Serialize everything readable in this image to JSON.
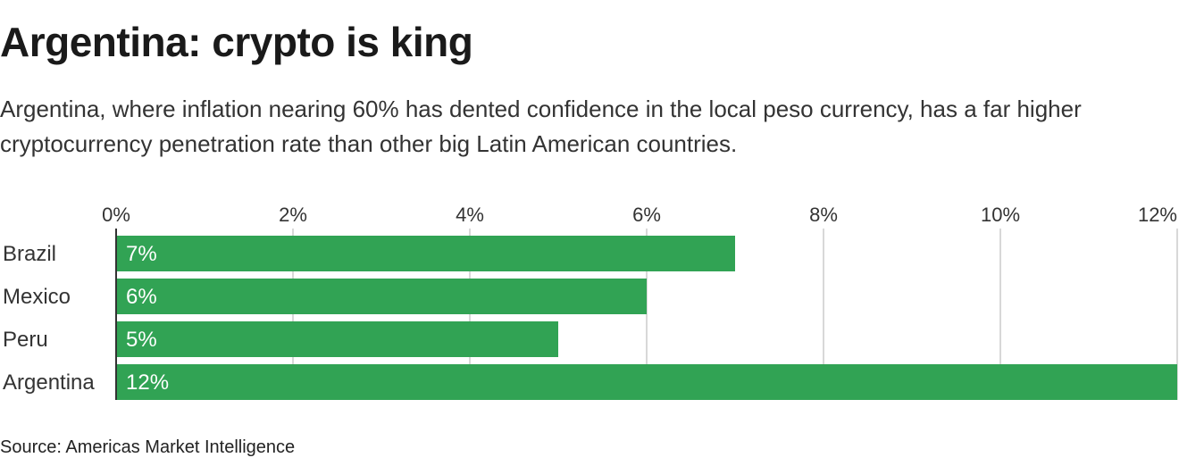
{
  "title": "Argentina: crypto is king",
  "subtitle": "Argentina, where inflation nearing 60% has dented confidence in the local peso currency, has a far higher cryptocurrency penetration rate than other big Latin American countries.",
  "source": "Source: Americas Market Intelligence",
  "colors": {
    "bar": "#31a354",
    "bar_label": "#ffffff",
    "grid": "#cccccc",
    "axis": "#333333",
    "text": "#333333"
  },
  "chart_data": {
    "type": "bar",
    "orientation": "horizontal",
    "categories": [
      "Brazil",
      "Mexico",
      "Peru",
      "Argentina"
    ],
    "values": [
      7,
      6,
      5,
      12
    ],
    "value_labels": [
      "7%",
      "6%",
      "5%",
      "12%"
    ],
    "xlim": [
      0,
      12
    ],
    "xticks": [
      0,
      2,
      4,
      6,
      8,
      10,
      12
    ],
    "xtick_labels": [
      "0%",
      "2%",
      "4%",
      "6%",
      "8%",
      "10%",
      "12%"
    ],
    "x_axis_position": "top",
    "grid": true,
    "legend": false
  }
}
